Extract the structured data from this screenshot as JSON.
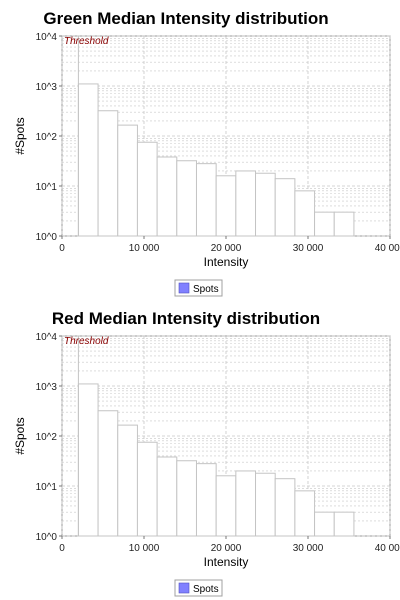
{
  "colors": {
    "plot_background": "#ffffff",
    "grid": "#c8c8c8",
    "bar_stroke": "#c4c4c4",
    "threshold": "#8b0000",
    "legend_swatch": "#8080ff"
  },
  "chart_data": [
    {
      "type": "bar",
      "title": "Green Median Intensity distribution",
      "xlabel": "Intensity",
      "ylabel": "#Spots",
      "y_scale": "log",
      "xlim": [
        0,
        40000
      ],
      "ylim": [
        1,
        10000
      ],
      "x_ticks": [
        0,
        10000,
        20000,
        30000,
        40000
      ],
      "x_tick_labels": [
        "0",
        "10 000",
        "20 000",
        "30 000",
        "40 000"
      ],
      "y_ticks": [
        1,
        10,
        100,
        1000,
        10000
      ],
      "y_tick_labels": [
        "10^0",
        "10^1",
        "10^2",
        "10^3",
        "10^4"
      ],
      "grid": true,
      "annotation": "Threshold",
      "threshold_x": 2000,
      "legend": {
        "entries": [
          "Spots"
        ],
        "placement": "bottom-center"
      },
      "series": [
        {
          "name": "Spots",
          "bin_edges": [
            2000,
            4400,
            6800,
            9200,
            11600,
            14000,
            16400,
            18800,
            21200,
            23600,
            26000,
            28400,
            30800,
            33200,
            35600
          ],
          "values": [
            1100,
            320,
            165,
            75,
            38,
            32,
            28,
            16,
            20,
            18,
            14,
            8,
            3,
            3
          ]
        }
      ]
    },
    {
      "type": "bar",
      "title": "Red Median Intensity distribution",
      "xlabel": "Intensity",
      "ylabel": "#Spots",
      "y_scale": "log",
      "xlim": [
        0,
        40000
      ],
      "ylim": [
        1,
        10000
      ],
      "x_ticks": [
        0,
        10000,
        20000,
        30000,
        40000
      ],
      "x_tick_labels": [
        "0",
        "10 000",
        "20 000",
        "30 000",
        "40 000"
      ],
      "y_ticks": [
        1,
        10,
        100,
        1000,
        10000
      ],
      "y_tick_labels": [
        "10^0",
        "10^1",
        "10^2",
        "10^3",
        "10^4"
      ],
      "grid": true,
      "annotation": "Threshold",
      "threshold_x": 2000,
      "legend": {
        "entries": [
          "Spots"
        ],
        "placement": "bottom-center"
      },
      "series": [
        {
          "name": "Spots",
          "bin_edges": [
            2000,
            4400,
            6800,
            9200,
            11600,
            14000,
            16400,
            18800,
            21200,
            23600,
            26000,
            28400,
            30800,
            33200,
            35600
          ],
          "values": [
            1100,
            320,
            165,
            75,
            38,
            32,
            28,
            16,
            20,
            18,
            14,
            8,
            3,
            3
          ]
        }
      ]
    }
  ]
}
